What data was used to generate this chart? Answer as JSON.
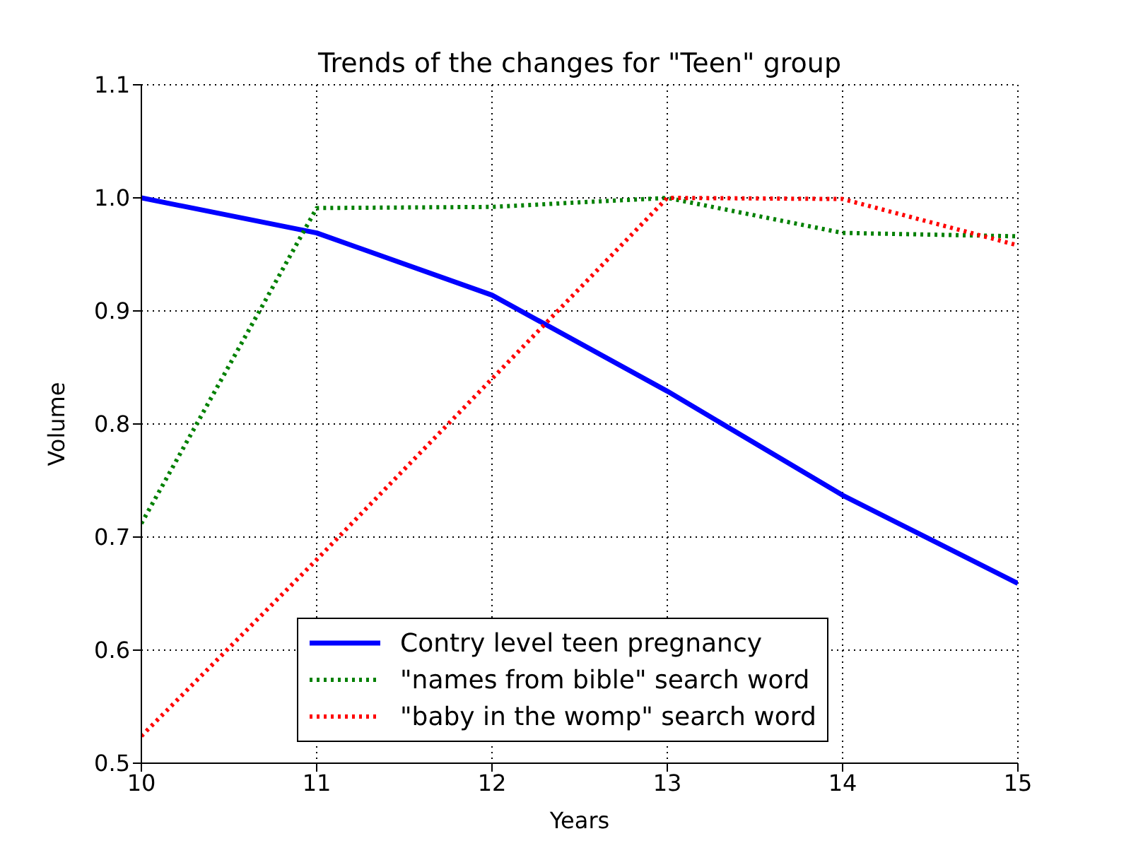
{
  "chart_data": {
    "type": "line",
    "title": "Trends of the changes for \"Teen\" group",
    "xlabel": "Years",
    "ylabel": "Volume",
    "x": [
      10,
      11,
      12,
      13,
      14,
      15
    ],
    "series": [
      {
        "name": "Contry level teen pregnancy",
        "color": "#0000ff",
        "line_style": "solid",
        "values": [
          1.0,
          0.969,
          0.914,
          0.829,
          0.737,
          0.659
        ]
      },
      {
        "name": "\"names from bible\" search word",
        "color": "#008000",
        "line_style": "dotted",
        "values": [
          0.712,
          0.991,
          0.992,
          1.0,
          0.969,
          0.966
        ]
      },
      {
        "name": "\"baby in the womp\" search word",
        "color": "#ff0000",
        "line_style": "dotted",
        "values": [
          0.524,
          0.68,
          0.84,
          1.0,
          0.999,
          0.958
        ]
      }
    ],
    "xlim": [
      10,
      15
    ],
    "xticks": [
      10,
      11,
      12,
      13,
      14,
      15
    ],
    "ylim": [
      0.5,
      1.1
    ],
    "yticks": [
      0.5,
      0.6,
      0.7,
      0.8,
      0.9,
      {
        "value": 1.0,
        "label": "1.0"
      },
      1.1
    ],
    "grid": true,
    "legend": "bottom",
    "marker": "none"
  }
}
